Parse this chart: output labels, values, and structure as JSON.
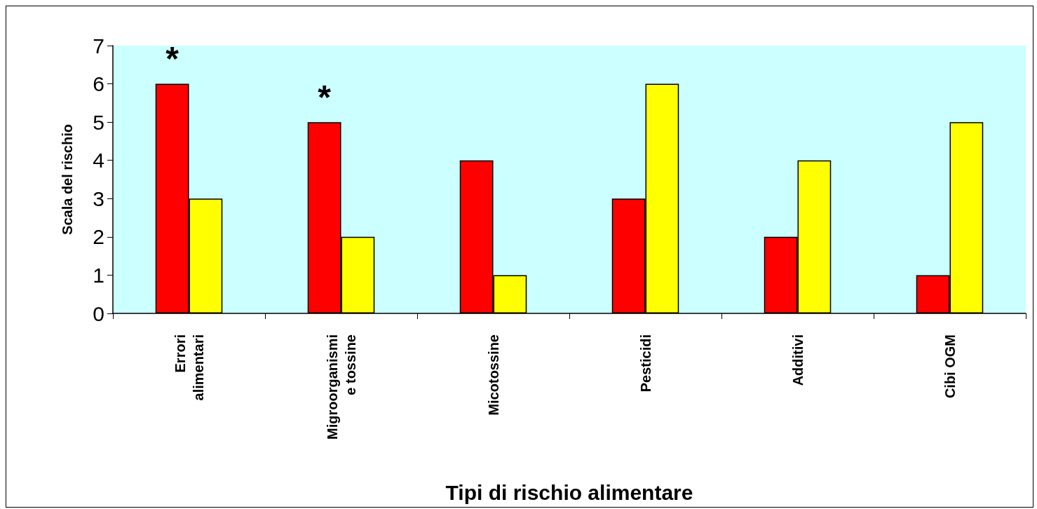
{
  "chart_data": {
    "type": "bar",
    "xlabel": "Tipi di rischio alimentare",
    "ylabel": "Scala del rischio",
    "categories": [
      "Errori\nalimentari",
      "Migroorganismi\ne tossine",
      "Micotossine",
      "Pesticidi",
      "Additivi",
      "Cibi OGM"
    ],
    "series": [
      {
        "color": "#ff0000",
        "values": [
          6,
          5,
          4,
          3,
          2,
          1
        ]
      },
      {
        "color": "#ffff00",
        "values": [
          3,
          2,
          1,
          6,
          4,
          5
        ]
      }
    ],
    "ylim": [
      0,
      7
    ],
    "yticks": [
      0,
      1,
      2,
      3,
      4,
      5,
      6,
      7
    ],
    "grid": false,
    "annotations": [
      "*",
      "*"
    ]
  }
}
